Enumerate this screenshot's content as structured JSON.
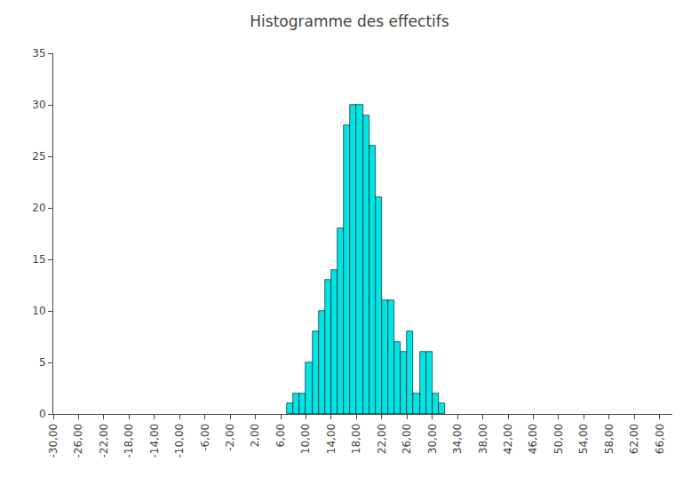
{
  "chart_data": {
    "type": "histogram",
    "title": "Histogramme des effectifs",
    "bins": [
      7,
      8,
      9,
      10,
      11,
      12,
      13,
      14,
      15,
      16,
      17,
      18,
      19,
      20,
      21,
      22,
      23,
      24,
      25,
      26,
      27,
      28,
      29,
      30,
      31,
      32
    ],
    "values": [
      1,
      2,
      2,
      5,
      8,
      10,
      13,
      14,
      18,
      28,
      30,
      30,
      29,
      26,
      21,
      11,
      11,
      7,
      6,
      8,
      2,
      6,
      6,
      2,
      1
    ],
    "color": "#00E5E5",
    "xlim": [
      -30,
      68
    ],
    "xticks": [
      {
        "value": -30,
        "label": "-30,00"
      },
      {
        "value": -26,
        "label": "-26,00"
      },
      {
        "value": -22,
        "label": "-22,00"
      },
      {
        "value": -18,
        "label": "-18,00"
      },
      {
        "value": -14,
        "label": "-14,00"
      },
      {
        "value": -10,
        "label": "-10,00"
      },
      {
        "value": -6,
        "label": "-6,00"
      },
      {
        "value": -2,
        "label": "-2,00"
      },
      {
        "value": 2,
        "label": "2,00"
      },
      {
        "value": 6,
        "label": "6,00"
      },
      {
        "value": 10,
        "label": "10,00"
      },
      {
        "value": 14,
        "label": "14,00"
      },
      {
        "value": 18,
        "label": "18,00"
      },
      {
        "value": 22,
        "label": "22,00"
      },
      {
        "value": 26,
        "label": "26,00"
      },
      {
        "value": 30,
        "label": "30,00"
      },
      {
        "value": 34,
        "label": "34,00"
      },
      {
        "value": 38,
        "label": "38,00"
      },
      {
        "value": 42,
        "label": "42,00"
      },
      {
        "value": 46,
        "label": "46,00"
      },
      {
        "value": 50,
        "label": "50,00"
      },
      {
        "value": 54,
        "label": "54,00"
      },
      {
        "value": 58,
        "label": "58,00"
      },
      {
        "value": 62,
        "label": "62,00"
      },
      {
        "value": 66,
        "label": "66,00"
      }
    ],
    "ylim": [
      0,
      35
    ],
    "yticks": [
      0,
      5,
      10,
      15,
      20,
      25,
      30,
      35
    ],
    "grid": false
  }
}
